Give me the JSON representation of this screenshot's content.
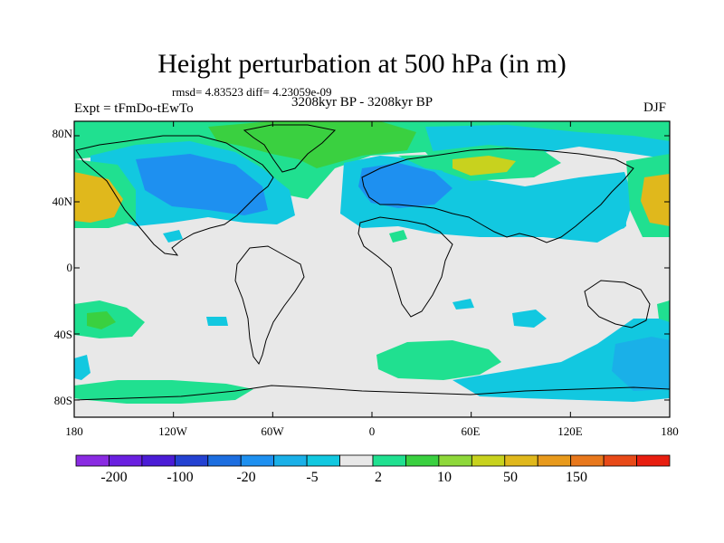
{
  "title": "Height perturbation at 500 hPa (in m)",
  "stats": "rmsd= 4.83523 diff= 4.23059e-09",
  "period": "3208kyr BP - 3208kyr BP",
  "experiment": "Expt = tFmDo-tEwTo",
  "season": "DJF",
  "lat_ticks": [
    "80N",
    "40N",
    "0",
    "40S",
    "80S"
  ],
  "lon_ticks": [
    "180",
    "120W",
    "60W",
    "0",
    "60E",
    "120E",
    "180"
  ],
  "colorbar": {
    "colors": [
      "#8a2be2",
      "#6a20e0",
      "#4b1cd6",
      "#2442d2",
      "#1c6ee0",
      "#1e90f0",
      "#1ab0e8",
      "#12c8e0",
      "#e8e8e8",
      "#20e090",
      "#3ad040",
      "#8ed83a",
      "#c8d21e",
      "#e0b81c",
      "#e89a1c",
      "#e8781c",
      "#e84a18",
      "#e81e10"
    ],
    "labels": [
      "-200",
      "-100",
      "-20",
      "-5",
      "2",
      "10",
      "50",
      "150"
    ]
  },
  "region_colors": {
    "neutral": "#e8e8e8",
    "cyan": "#12c8e0",
    "lightblue": "#1ab0e8",
    "blue": "#1e90f0",
    "green": "#20e090",
    "limegreen": "#3ad040",
    "yellowgreen": "#c8d21e",
    "orange": "#e0b81c"
  }
}
